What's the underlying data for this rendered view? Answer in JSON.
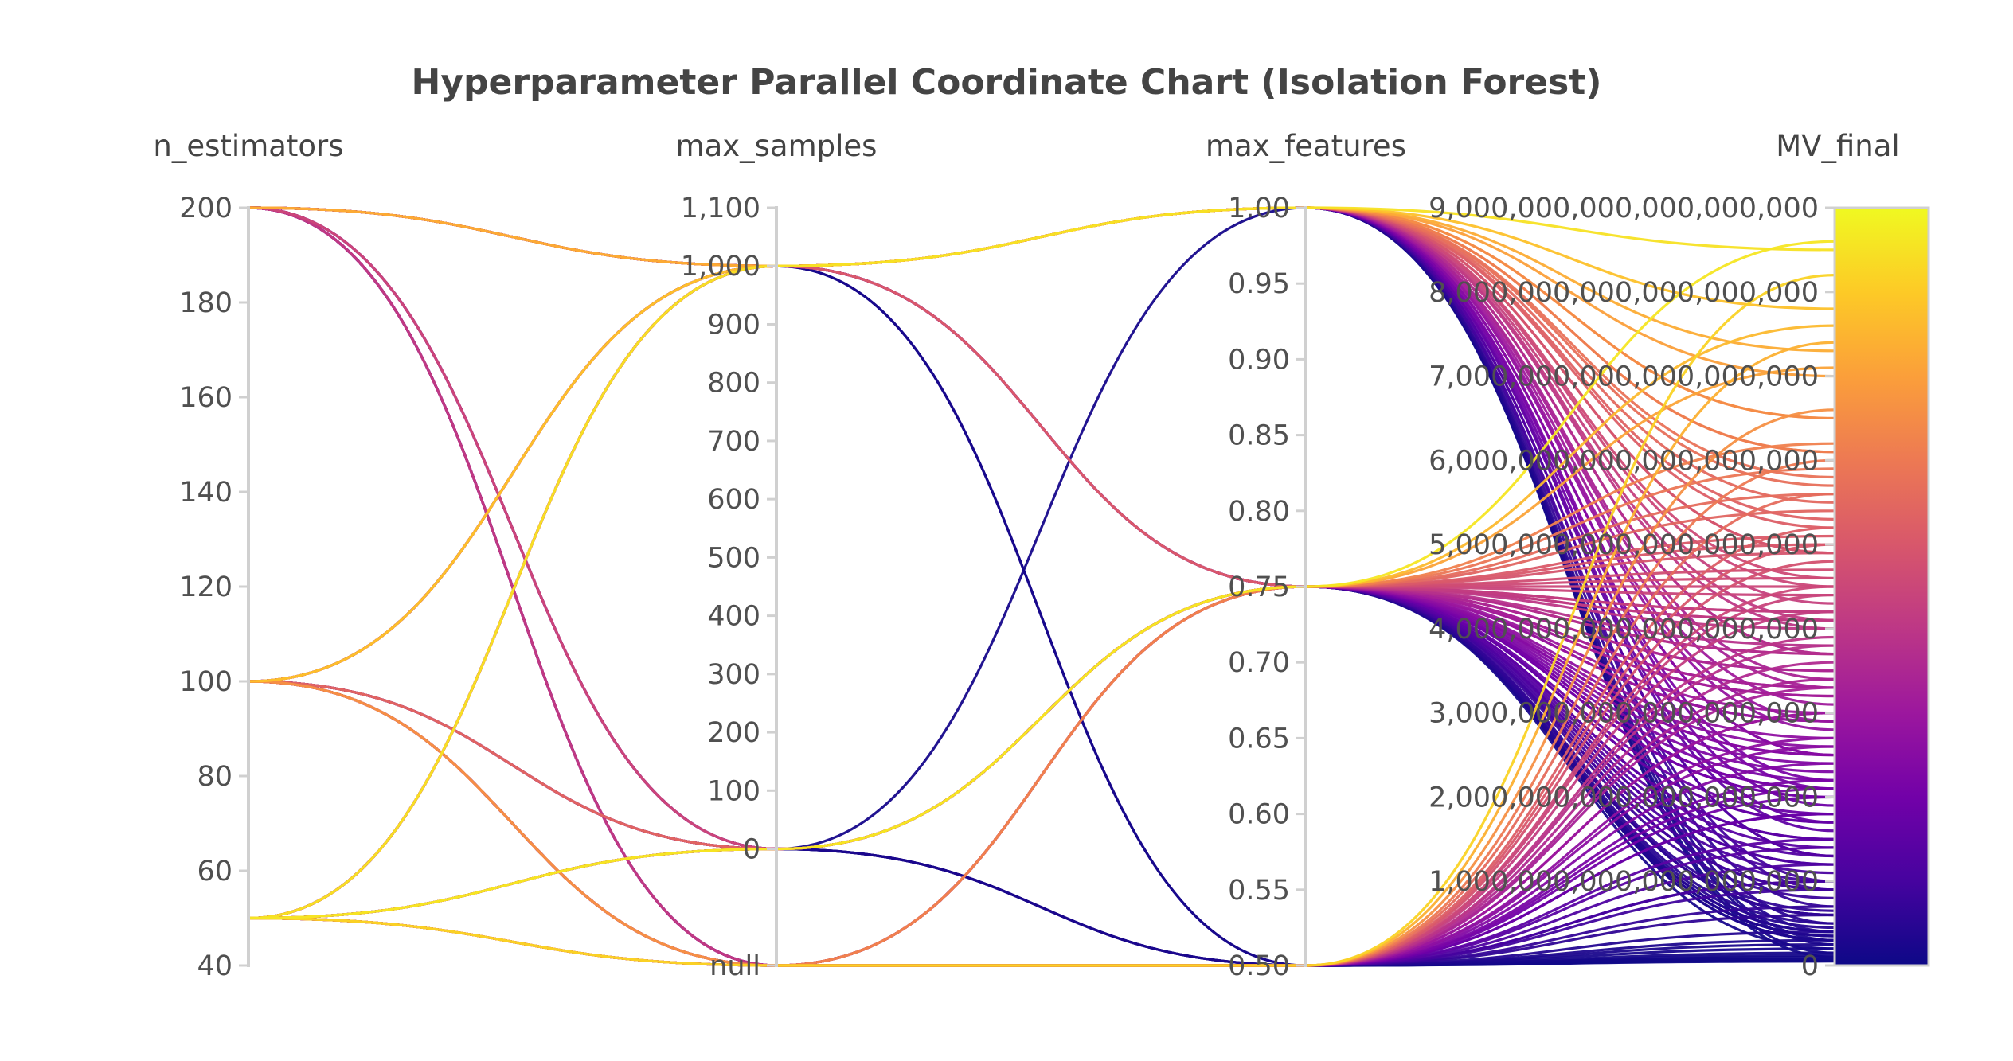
{
  "chart_data": {
    "type": "parallel_coordinates",
    "title": "Hyperparameter Parallel Coordinate Chart (Isolation Forest)",
    "colorscale": [
      "#0d0887",
      "#46039f",
      "#7201a8",
      "#9c179e",
      "#bd3786",
      "#d8576b",
      "#ed7953",
      "#fb9f3a",
      "#fdca26",
      "#f0f921"
    ],
    "axes": [
      {
        "name": "n_estimators",
        "range": [
          40,
          200
        ],
        "ticks": [
          {
            "value": 40,
            "label": "40"
          },
          {
            "value": 60,
            "label": "60"
          },
          {
            "value": 80,
            "label": "80"
          },
          {
            "value": 100,
            "label": "100"
          },
          {
            "value": 120,
            "label": "120"
          },
          {
            "value": 140,
            "label": "140"
          },
          {
            "value": 160,
            "label": "160"
          },
          {
            "value": 180,
            "label": "180"
          },
          {
            "value": 200,
            "label": "200"
          }
        ]
      },
      {
        "name": "max_samples",
        "range": [
          -200,
          1100
        ],
        "ticks": [
          {
            "value": -200,
            "label": "null"
          },
          {
            "value": 0,
            "label": "0"
          },
          {
            "value": 100,
            "label": "100"
          },
          {
            "value": 200,
            "label": "200"
          },
          {
            "value": 300,
            "label": "300"
          },
          {
            "value": 400,
            "label": "400"
          },
          {
            "value": 500,
            "label": "500"
          },
          {
            "value": 600,
            "label": "600"
          },
          {
            "value": 700,
            "label": "700"
          },
          {
            "value": 800,
            "label": "800"
          },
          {
            "value": 900,
            "label": "900"
          },
          {
            "value": 1000,
            "label": "1,000"
          },
          {
            "value": 1100,
            "label": "1,100"
          }
        ]
      },
      {
        "name": "max_features",
        "range": [
          0.5,
          1.0
        ],
        "ticks": [
          {
            "value": 0.5,
            "label": "0.50"
          },
          {
            "value": 0.55,
            "label": "0.55"
          },
          {
            "value": 0.6,
            "label": "0.60"
          },
          {
            "value": 0.65,
            "label": "0.65"
          },
          {
            "value": 0.7,
            "label": "0.70"
          },
          {
            "value": 0.75,
            "label": "0.75"
          },
          {
            "value": 0.8,
            "label": "0.80"
          },
          {
            "value": 0.85,
            "label": "0.85"
          },
          {
            "value": 0.9,
            "label": "0.90"
          },
          {
            "value": 0.95,
            "label": "0.95"
          },
          {
            "value": 1.0,
            "label": "1.00"
          }
        ]
      },
      {
        "name": "MV_final",
        "range": [
          0,
          9000000000000000000
        ],
        "ticks": [
          {
            "value": 0,
            "label": "0"
          },
          {
            "value": 1000000000000000000,
            "label": "1,000,000,000,000,000,000"
          },
          {
            "value": 2000000000000000000,
            "label": "2,000,000,000,000,000,000"
          },
          {
            "value": 3000000000000000000,
            "label": "3,000,000,000,000,000,000"
          },
          {
            "value": 4000000000000000000,
            "label": "4,000,000,000,000,000,000"
          },
          {
            "value": 5000000000000000000,
            "label": "5,000,000,000,000,000,000"
          },
          {
            "value": 6000000000000000000,
            "label": "6,000,000,000,000,000,000"
          },
          {
            "value": 7000000000000000000,
            "label": "7,000,000,000,000,000,000"
          },
          {
            "value": 8000000000000000000,
            "label": "8,000,000,000,000,000,000"
          },
          {
            "value": 9000000000000000000,
            "label": "9,000,000,000,000,000,000"
          }
        ]
      }
    ],
    "rows": [
      [
        200,
        1000,
        0.75,
        200000000000000000
      ],
      [
        200,
        1000,
        0.75,
        350000000000000000
      ],
      [
        200,
        1000,
        1.0,
        100000000000000000
      ],
      [
        200,
        1000,
        1.0,
        250000000000000000
      ],
      [
        200,
        0,
        0.5,
        50000000000000000
      ],
      [
        200,
        0,
        0.5,
        150000000000000000
      ],
      [
        200,
        -200,
        0.5,
        80000000000000000
      ],
      [
        200,
        -200,
        0.75,
        300000000000000000
      ],
      [
        100,
        1000,
        0.75,
        400000000000000000
      ],
      [
        100,
        1000,
        0.75,
        600000000000000000
      ],
      [
        100,
        1000,
        1.0,
        300000000000000000
      ],
      [
        100,
        0,
        0.5,
        120000000000000000
      ],
      [
        100,
        0,
        0.5,
        250000000000000000
      ],
      [
        100,
        0,
        0.75,
        450000000000000000
      ],
      [
        100,
        -200,
        0.5,
        80000000000000000
      ],
      [
        50,
        1000,
        0.5,
        100000000000000000
      ],
      [
        50,
        1000,
        0.5,
        200000000000000000
      ],
      [
        50,
        1000,
        0.75,
        350000000000000000
      ],
      [
        50,
        0,
        1.0,
        150000000000000000
      ],
      [
        50,
        0,
        0.75,
        500000000000000000
      ],
      [
        50,
        -200,
        0.5,
        60000000000000000
      ],
      [
        50,
        -200,
        0.75,
        300000000000000000
      ],
      [
        50,
        1000,
        0.75,
        2900000000000000000
      ],
      [
        50,
        1000,
        0.75,
        3300000000000000000
      ],
      [
        50,
        1000,
        0.75,
        3700000000000000000
      ],
      [
        100,
        1000,
        0.75,
        4200000000000000000
      ],
      [
        50,
        1000,
        0.75,
        5100000000000000000
      ],
      [
        50,
        0,
        0.75,
        7600000000000000000
      ],
      [
        50,
        0,
        0.75,
        7100000000000000000
      ],
      [
        100,
        0,
        0.75,
        5400000000000000000
      ],
      [
        50,
        0,
        0.75,
        8600000000000000000
      ],
      [
        50,
        -200,
        0.75,
        5600000000000000000
      ],
      [
        50,
        -200,
        0.75,
        4900000000000000000
      ],
      [
        100,
        -200,
        0.75,
        5900000000000000000
      ],
      [
        50,
        -200,
        0.75,
        6200000000000000000
      ],
      [
        50,
        -200,
        0.75,
        4600000000000000000
      ],
      [
        100,
        -200,
        0.75,
        5000000000000000000
      ],
      [
        50,
        1000,
        1.0,
        400000000000000000
      ],
      [
        50,
        1000,
        1.0,
        700000000000000000
      ],
      [
        100,
        1000,
        1.0,
        1000000000000000000
      ],
      [
        50,
        1000,
        1.0,
        1300000000000000000
      ],
      [
        100,
        1000,
        1.0,
        1600000000000000000
      ],
      [
        50,
        1000,
        1.0,
        1900000000000000000
      ],
      [
        100,
        1000,
        1.0,
        2200000000000000000
      ],
      [
        50,
        1000,
        1.0,
        2500000000000000000
      ],
      [
        100,
        1000,
        1.0,
        2800000000000000000
      ],
      [
        50,
        1000,
        1.0,
        3100000000000000000
      ],
      [
        100,
        1000,
        1.0,
        3400000000000000000
      ],
      [
        50,
        1000,
        1.0,
        3700000000000000000
      ],
      [
        100,
        1000,
        1.0,
        4000000000000000000
      ],
      [
        50,
        1000,
        1.0,
        4300000000000000000
      ],
      [
        100,
        1000,
        1.0,
        4600000000000000000
      ],
      [
        50,
        1000,
        1.0,
        4900000000000000000
      ],
      [
        100,
        1000,
        1.0,
        5200000000000000000
      ],
      [
        50,
        1000,
        1.0,
        5500000000000000000
      ],
      [
        100,
        1000,
        1.0,
        5800000000000000000
      ],
      [
        50,
        1000,
        1.0,
        6100000000000000000
      ],
      [
        100,
        1000,
        1.0,
        6500000000000000000
      ],
      [
        50,
        1000,
        1.0,
        7000000000000000000
      ],
      [
        100,
        1000,
        1.0,
        7800000000000000000
      ],
      [
        50,
        1000,
        1.0,
        8500000000000000000
      ],
      [
        50,
        -200,
        0.5,
        300000000000000000
      ],
      [
        100,
        -200,
        0.5,
        600000000000000000
      ],
      [
        50,
        -200,
        0.5,
        900000000000000000
      ],
      [
        100,
        -200,
        0.5,
        1200000000000000000
      ],
      [
        50,
        -200,
        0.5,
        1500000000000000000
      ],
      [
        100,
        -200,
        0.5,
        1800000000000000000
      ],
      [
        50,
        -200,
        0.5,
        2100000000000000000
      ],
      [
        100,
        -200,
        0.5,
        2400000000000000000
      ],
      [
        50,
        -200,
        0.5,
        2700000000000000000
      ],
      [
        100,
        -200,
        0.5,
        3000000000000000000
      ],
      [
        50,
        -200,
        0.5,
        3300000000000000000
      ],
      [
        100,
        -200,
        0.5,
        3600000000000000000
      ],
      [
        50,
        -200,
        0.5,
        3900000000000000000
      ],
      [
        100,
        -200,
        0.5,
        4200000000000000000
      ],
      [
        50,
        -200,
        0.5,
        4500000000000000000
      ],
      [
        100,
        -200,
        0.5,
        4800000000000000000
      ],
      [
        50,
        -200,
        0.5,
        5200000000000000000
      ],
      [
        100,
        -200,
        0.5,
        5600000000000000000
      ],
      [
        50,
        -200,
        0.5,
        6000000000000000000
      ],
      [
        100,
        -200,
        0.5,
        6600000000000000000
      ],
      [
        50,
        -200,
        0.5,
        7400000000000000000
      ],
      [
        50,
        -200,
        0.5,
        8200000000000000000
      ],
      [
        100,
        0,
        0.75,
        400000000000000000
      ],
      [
        50,
        0,
        0.75,
        800000000000000000
      ],
      [
        100,
        0,
        0.75,
        1100000000000000000
      ],
      [
        50,
        0,
        0.75,
        1400000000000000000
      ],
      [
        100,
        0,
        0.75,
        1700000000000000000
      ],
      [
        50,
        0,
        0.75,
        2000000000000000000
      ],
      [
        100,
        0,
        0.75,
        2300000000000000000
      ],
      [
        50,
        0,
        0.75,
        2600000000000000000
      ],
      [
        100,
        0,
        0.75,
        2900000000000000000
      ],
      [
        50,
        0,
        0.75,
        3200000000000000000
      ],
      [
        100,
        0,
        0.75,
        3500000000000000000
      ],
      [
        50,
        0,
        0.75,
        3800000000000000000
      ],
      [
        100,
        0,
        0.75,
        4100000000000000000
      ],
      [
        50,
        0,
        0.75,
        4400000000000000000
      ],
      [
        100,
        0,
        0.75,
        4700000000000000000
      ],
      [
        200,
        0,
        0.75,
        1000000000000000000
      ],
      [
        200,
        0,
        0.75,
        1500000000000000000
      ],
      [
        200,
        0,
        0.75,
        2000000000000000000
      ],
      [
        200,
        0,
        0.75,
        2500000000000000000
      ],
      [
        200,
        0,
        0.75,
        3000000000000000000
      ],
      [
        200,
        0,
        0.75,
        3500000000000000000
      ],
      [
        200,
        0,
        0.75,
        4000000000000000000
      ],
      [
        200,
        0,
        0.75,
        4500000000000000000
      ],
      [
        200,
        -200,
        0.75,
        600000000000000000
      ],
      [
        200,
        -200,
        0.75,
        900000000000000000
      ],
      [
        200,
        -200,
        0.75,
        1300000000000000000
      ],
      [
        200,
        -200,
        0.75,
        1700000000000000000
      ],
      [
        200,
        -200,
        0.75,
        2100000000000000000
      ],
      [
        200,
        -200,
        0.75,
        2500000000000000000
      ],
      [
        200,
        -200,
        0.75,
        2900000000000000000
      ],
      [
        200,
        -200,
        0.75,
        3300000000000000000
      ],
      [
        200,
        -200,
        0.75,
        3700000000000000000
      ],
      [
        200,
        -200,
        0.75,
        4100000000000000000
      ],
      [
        200,
        1000,
        0.75,
        600000000000000000
      ],
      [
        200,
        1000,
        0.75,
        900000000000000000
      ],
      [
        200,
        1000,
        0.75,
        1200000000000000000
      ],
      [
        200,
        1000,
        0.75,
        1500000000000000000
      ],
      [
        200,
        1000,
        0.75,
        1800000000000000000
      ],
      [
        200,
        1000,
        0.75,
        2100000000000000000
      ],
      [
        200,
        1000,
        0.75,
        2400000000000000000
      ],
      [
        200,
        1000,
        0.75,
        2700000000000000000
      ],
      [
        100,
        -200,
        0.75,
        1200000000000000000
      ],
      [
        100,
        -200,
        0.75,
        2200000000000000000
      ],
      [
        100,
        -200,
        0.75,
        3200000000000000000
      ],
      [
        100,
        -200,
        0.75,
        4200000000000000000
      ],
      [
        200,
        -200,
        0.5,
        400000000000000000
      ],
      [
        200,
        -200,
        0.5,
        700000000000000000
      ],
      [
        200,
        -200,
        0.5,
        1000000000000000000
      ],
      [
        200,
        -200,
        0.5,
        1400000000000000000
      ],
      [
        200,
        -200,
        0.5,
        1800000000000000000
      ],
      [
        200,
        -200,
        0.5,
        2200000000000000000
      ],
      [
        200,
        -200,
        0.5,
        2600000000000000000
      ],
      [
        200,
        -200,
        0.5,
        3000000000000000000
      ],
      [
        200,
        -200,
        0.5,
        3400000000000000000
      ],
      [
        200,
        -200,
        0.5,
        3800000000000000000
      ],
      [
        100,
        -200,
        0.5,
        1000000000000000000
      ],
      [
        100,
        -200,
        0.5,
        2000000000000000000
      ],
      [
        100,
        -200,
        0.5,
        4400000000000000000
      ],
      [
        100,
        -200,
        0.5,
        5000000000000000000
      ],
      [
        200,
        1000,
        1.0,
        500000000000000000
      ],
      [
        200,
        1000,
        1.0,
        900000000000000000
      ],
      [
        200,
        1000,
        1.0,
        1300000000000000000
      ],
      [
        200,
        1000,
        1.0,
        1700000000000000000
      ],
      [
        200,
        1000,
        1.0,
        2100000000000000000
      ],
      [
        200,
        1000,
        1.0,
        2500000000000000000
      ],
      [
        200,
        1000,
        1.0,
        2900000000000000000
      ],
      [
        200,
        1000,
        1.0,
        3300000000000000000
      ],
      [
        200,
        1000,
        1.0,
        3700000000000000000
      ],
      [
        200,
        1000,
        1.0,
        4100000000000000000
      ],
      [
        200,
        1000,
        1.0,
        4500000000000000000
      ],
      [
        200,
        1000,
        1.0,
        4900000000000000000
      ],
      [
        200,
        1000,
        1.0,
        5300000000000000000
      ],
      [
        200,
        1000,
        1.0,
        5700000000000000000
      ],
      [
        200,
        1000,
        1.0,
        6100000000000000000
      ],
      [
        200,
        1000,
        1.0,
        6500000000000000000
      ],
      [
        200,
        1000,
        1.0,
        7300000000000000000
      ],
      [
        200,
        0,
        0.75,
        350000000000000000
      ],
      [
        200,
        0,
        0.75,
        650000000000000000
      ]
    ]
  }
}
